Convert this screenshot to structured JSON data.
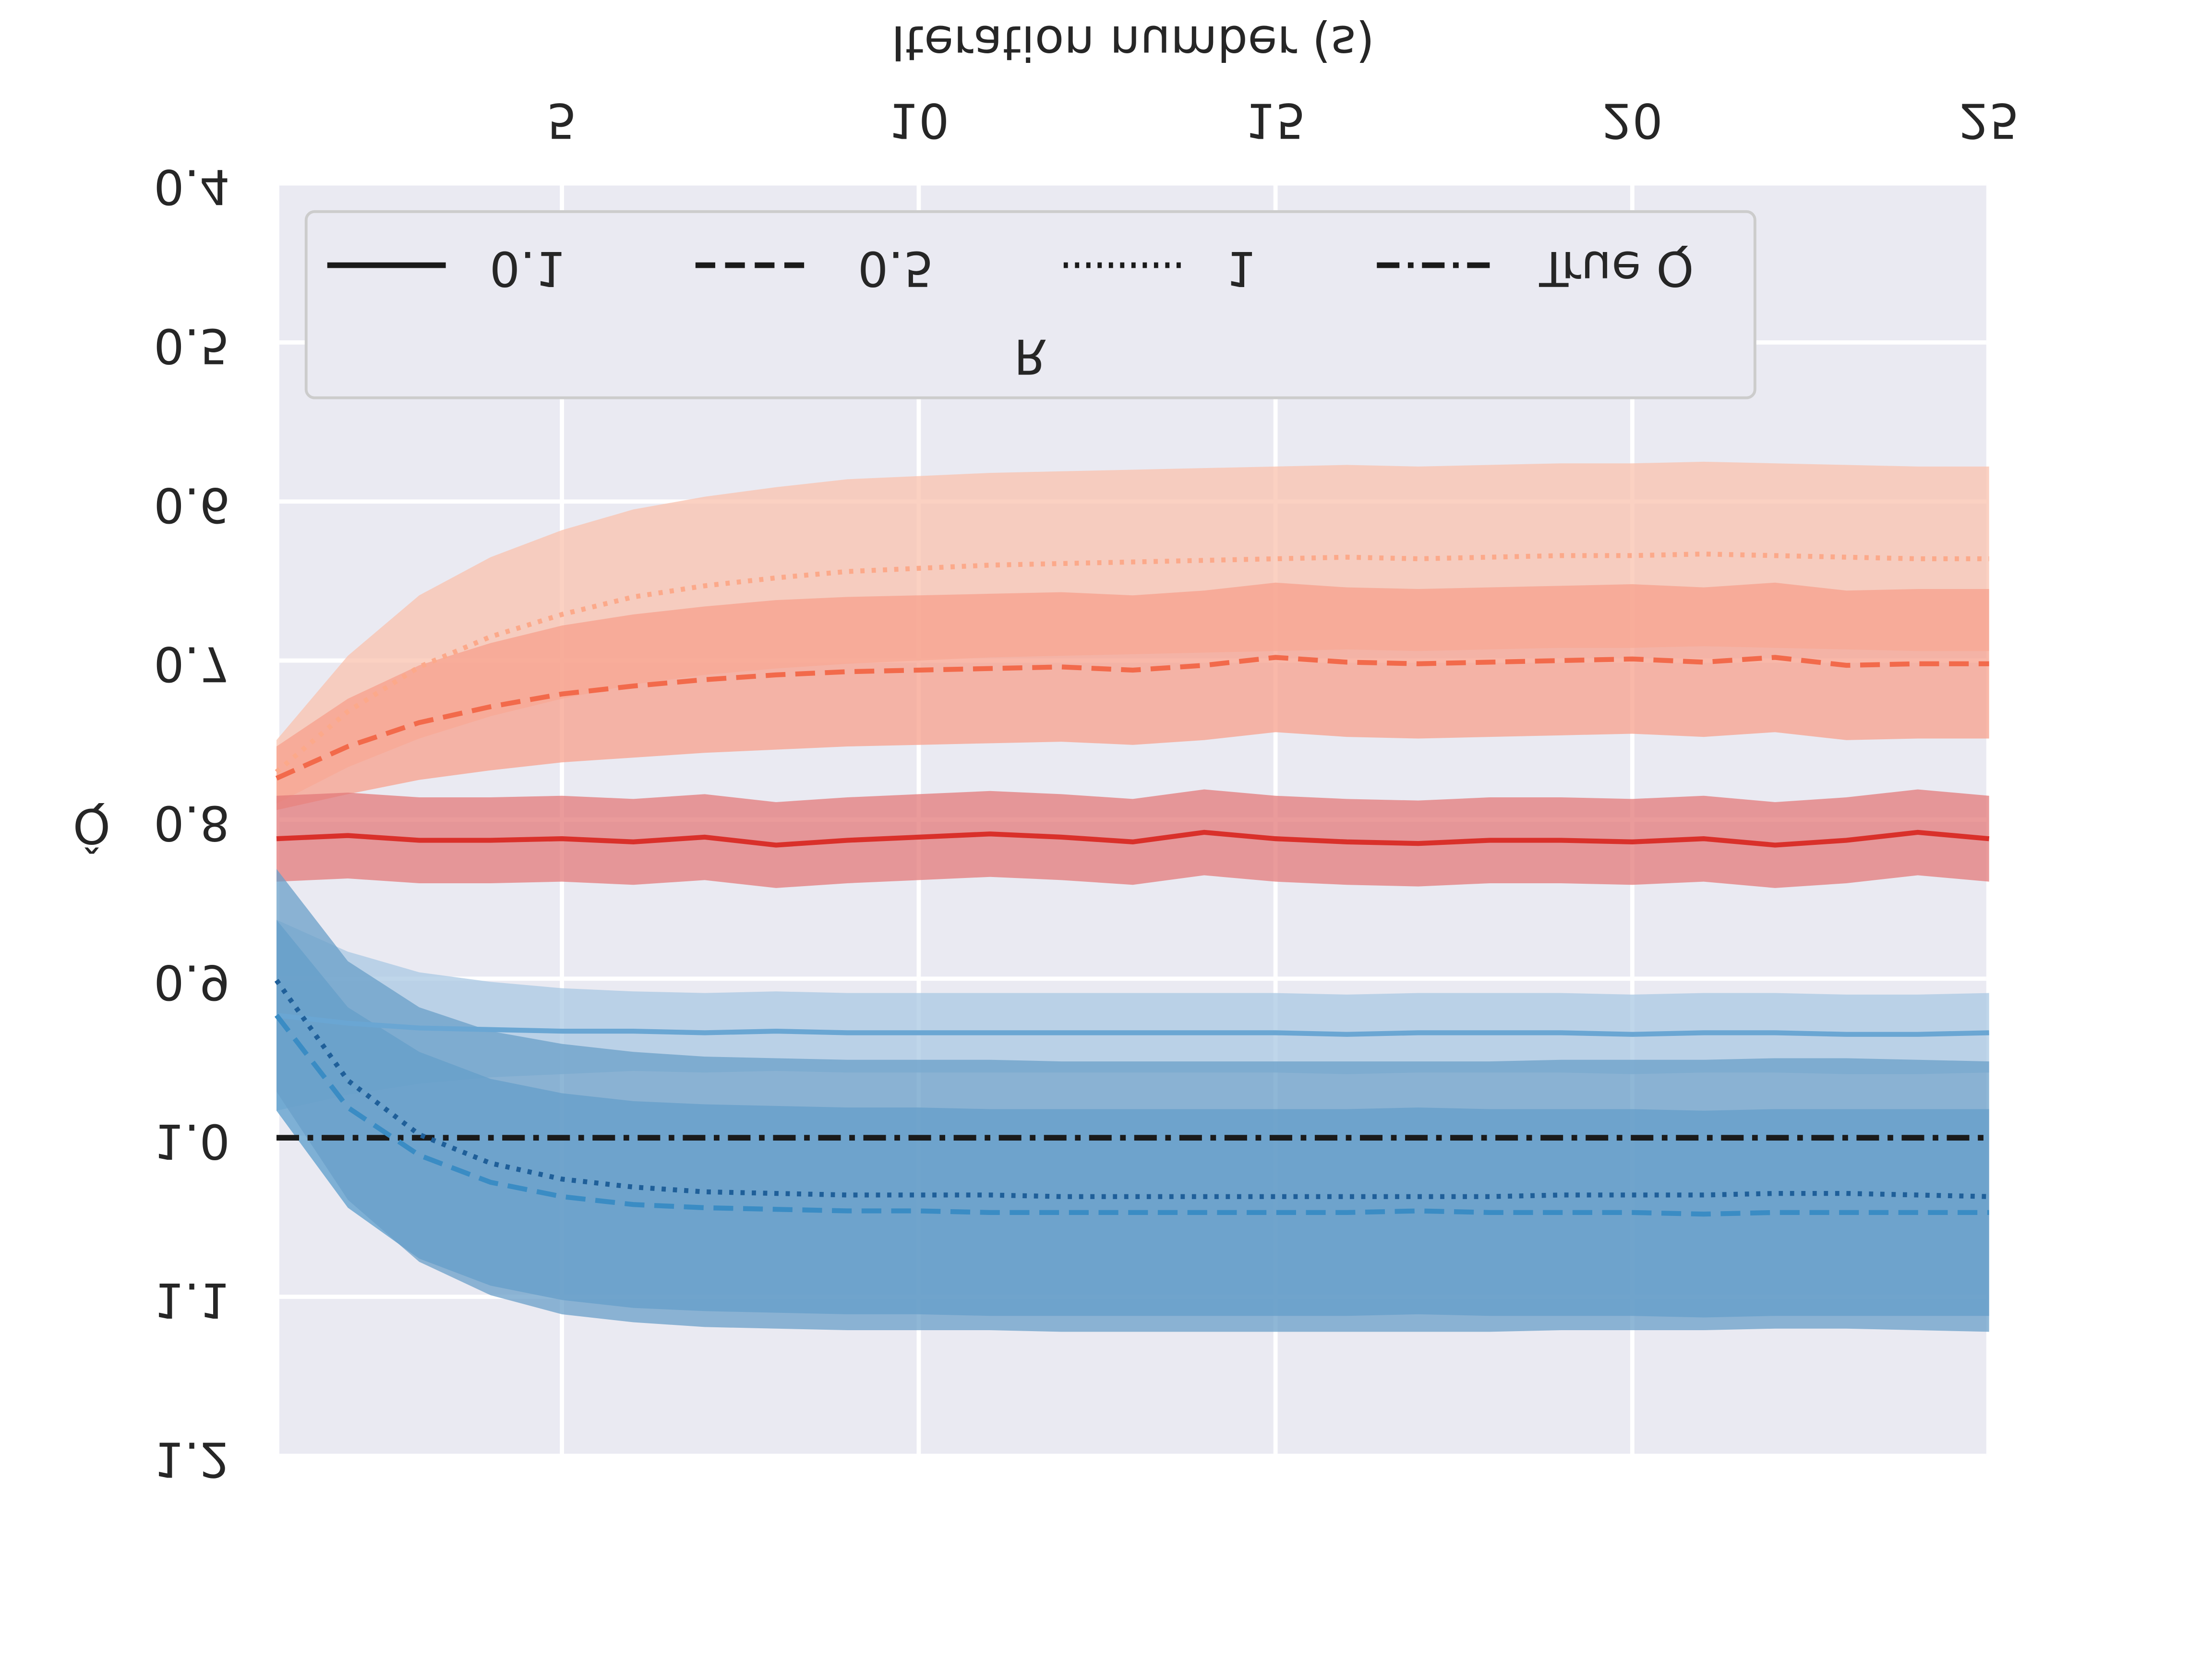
{
  "chart_data": {
    "type": "line",
    "xlabel": "Iteration number (s)",
    "ylabel": "Q̂",
    "x": [
      1,
      2,
      3,
      4,
      5,
      6,
      7,
      8,
      9,
      10,
      11,
      12,
      13,
      14,
      15,
      16,
      17,
      18,
      19,
      20,
      21,
      22,
      23,
      24,
      25
    ],
    "xlim": [
      1,
      25
    ],
    "xticks": [
      5,
      10,
      15,
      20,
      25
    ],
    "ylim": [
      0.4,
      1.2
    ],
    "yticks": [
      0.4,
      0.5,
      0.6,
      0.7,
      0.8,
      0.9,
      {
        "value": 1,
        "label": "1.0"
      },
      1.1,
      1.2
    ],
    "grid": true,
    "legend": {
      "title": "R",
      "position": "lower left",
      "items": [
        {
          "label": "0.1",
          "dash": "solid"
        },
        {
          "label": "0.5",
          "dash": "dashed"
        },
        {
          "label": "1",
          "dash": "dotted"
        },
        {
          "label": "True Q",
          "dash": "dashdot"
        }
      ]
    },
    "reference": {
      "value": 1,
      "color": "#1a1a1a",
      "dash": "dashdot"
    },
    "series": [
      {
        "dash": "dotted",
        "color": "#fca98a",
        "band_color": "#f9c2ad",
        "values": [
          0.77,
          0.732,
          0.704,
          0.685,
          0.671,
          0.66,
          0.653,
          0.648,
          0.644,
          0.642,
          0.64,
          0.639,
          0.638,
          0.637,
          0.636,
          0.635,
          0.636,
          0.635,
          0.634,
          0.634,
          0.633,
          0.634,
          0.635,
          0.636,
          0.636
        ],
        "errors": [
          0.02,
          0.035,
          0.045,
          0.05,
          0.053,
          0.055,
          0.056,
          0.057,
          0.058,
          0.058,
          0.058,
          0.058,
          0.058,
          0.058,
          0.058,
          0.058,
          0.058,
          0.058,
          0.058,
          0.058,
          0.058,
          0.058,
          0.058,
          0.058,
          0.058
        ]
      },
      {
        "dash": "dashed",
        "color": "#f26a4b",
        "band_color": "#f7a08c",
        "values": [
          0.774,
          0.754,
          0.739,
          0.729,
          0.721,
          0.716,
          0.712,
          0.709,
          0.707,
          0.706,
          0.705,
          0.704,
          0.706,
          0.703,
          0.698,
          0.701,
          0.702,
          0.701,
          0.7,
          0.699,
          0.701,
          0.698,
          0.703,
          0.702,
          0.702
        ],
        "errors": [
          0.02,
          0.03,
          0.036,
          0.04,
          0.043,
          0.045,
          0.046,
          0.047,
          0.047,
          0.047,
          0.047,
          0.047,
          0.047,
          0.047,
          0.047,
          0.047,
          0.047,
          0.047,
          0.047,
          0.047,
          0.047,
          0.047,
          0.047,
          0.047,
          0.047
        ]
      },
      {
        "dash": "solid",
        "color": "#d9302a",
        "band_color": "#e3797a",
        "values": [
          0.812,
          0.81,
          0.813,
          0.813,
          0.812,
          0.814,
          0.811,
          0.816,
          0.813,
          0.811,
          0.809,
          0.811,
          0.814,
          0.808,
          0.812,
          0.814,
          0.815,
          0.813,
          0.813,
          0.814,
          0.812,
          0.816,
          0.813,
          0.808,
          0.812
        ],
        "errors": [
          0.027,
          0.027,
          0.027,
          0.027,
          0.027,
          0.027,
          0.027,
          0.027,
          0.027,
          0.027,
          0.027,
          0.027,
          0.027,
          0.027,
          0.027,
          0.027,
          0.027,
          0.027,
          0.027,
          0.027,
          0.027,
          0.027,
          0.027,
          0.027,
          0.027
        ]
      },
      {
        "dash": "solid",
        "color": "#6aa6d3",
        "band_color": "#a9c8e3",
        "values": [
          0.923,
          0.928,
          0.931,
          0.932,
          0.933,
          0.933,
          0.934,
          0.933,
          0.934,
          0.934,
          0.934,
          0.934,
          0.934,
          0.934,
          0.934,
          0.935,
          0.934,
          0.934,
          0.934,
          0.935,
          0.934,
          0.934,
          0.935,
          0.935,
          0.934
        ],
        "errors": [
          0.06,
          0.045,
          0.035,
          0.03,
          0.027,
          0.025,
          0.025,
          0.025,
          0.025,
          0.025,
          0.025,
          0.025,
          0.025,
          0.025,
          0.025,
          0.025,
          0.025,
          0.025,
          0.025,
          0.025,
          0.025,
          0.025,
          0.025,
          0.025,
          0.025
        ]
      },
      {
        "dash": "dashed",
        "color": "#3a8cc4",
        "band_color": "#5a9ccb",
        "values": [
          0.923,
          0.981,
          1.011,
          1.028,
          1.037,
          1.042,
          1.044,
          1.045,
          1.046,
          1.046,
          1.047,
          1.047,
          1.047,
          1.047,
          1.047,
          1.047,
          1.046,
          1.047,
          1.047,
          1.047,
          1.048,
          1.047,
          1.047,
          1.047,
          1.047
        ],
        "errors": [
          0.06,
          0.063,
          0.065,
          0.065,
          0.065,
          0.065,
          0.065,
          0.065,
          0.065,
          0.065,
          0.065,
          0.065,
          0.065,
          0.065,
          0.065,
          0.065,
          0.065,
          0.065,
          0.065,
          0.065,
          0.065,
          0.065,
          0.065,
          0.065,
          0.065
        ]
      },
      {
        "dash": "dotted",
        "color": "#1f5f99",
        "band_color": "#6a9fc8",
        "values": [
          0.901,
          0.964,
          0.998,
          1.016,
          1.026,
          1.031,
          1.034,
          1.035,
          1.036,
          1.036,
          1.036,
          1.037,
          1.037,
          1.037,
          1.037,
          1.037,
          1.037,
          1.037,
          1.036,
          1.036,
          1.036,
          1.035,
          1.035,
          1.036,
          1.037
        ],
        "errors": [
          0.07,
          0.075,
          0.08,
          0.083,
          0.085,
          0.085,
          0.085,
          0.085,
          0.085,
          0.085,
          0.085,
          0.085,
          0.085,
          0.085,
          0.085,
          0.085,
          0.085,
          0.085,
          0.085,
          0.085,
          0.085,
          0.085,
          0.085,
          0.085,
          0.085
        ]
      }
    ]
  }
}
